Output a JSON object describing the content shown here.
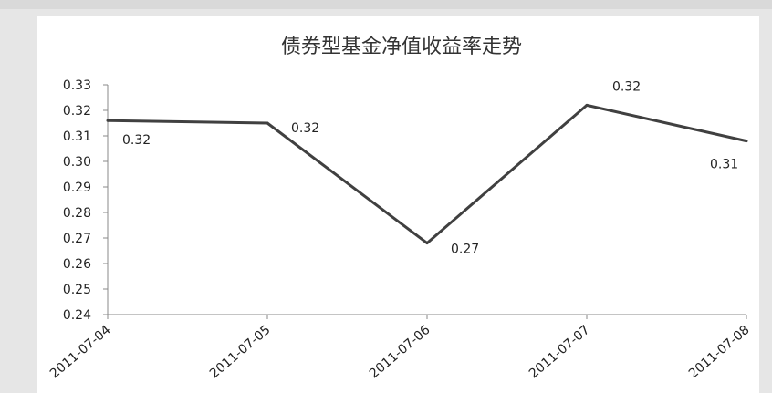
{
  "chart_data": {
    "type": "line",
    "title": "债券型基金净值收益率走势",
    "xlabel": "",
    "ylabel": "",
    "categories": [
      "2011-07-04",
      "2011-07-05",
      "2011-07-06",
      "2011-07-07",
      "2011-07-08"
    ],
    "series": [
      {
        "values": [
          0.316,
          0.315,
          0.268,
          0.322,
          0.308
        ],
        "data_labels": [
          "0.32",
          "0.32",
          "0.27",
          "0.32",
          "0.31"
        ]
      }
    ],
    "ylim": [
      0.24,
      0.33
    ],
    "yticks": [
      "0.24",
      "0.25",
      "0.26",
      "0.27",
      "0.28",
      "0.29",
      "0.30",
      "0.31",
      "0.32",
      "0.33"
    ],
    "grid": false,
    "legend": "none",
    "line_color": "#404040"
  }
}
